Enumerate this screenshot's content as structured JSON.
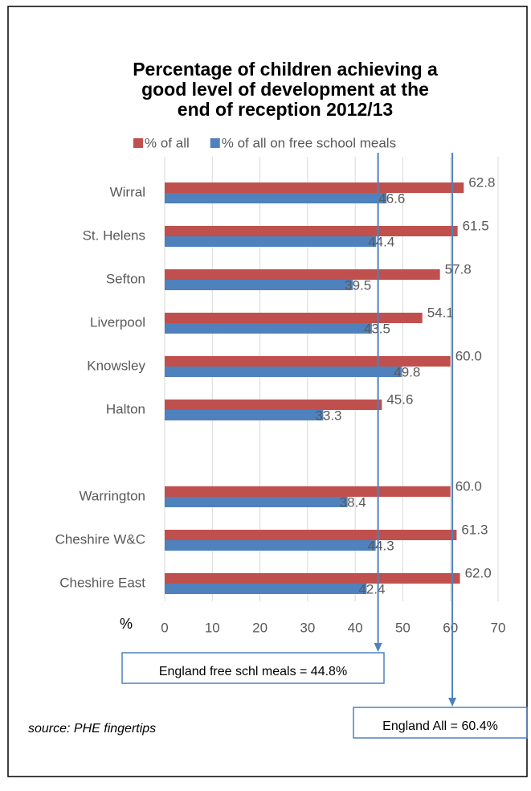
{
  "chart_data": {
    "type": "bar",
    "orientation": "horizontal",
    "title": [
      "Percentage of children achieving a",
      "good level of development at the",
      "end of reception 2012/13"
    ],
    "categories": [
      "Wirral",
      "St. Helens",
      "Sefton",
      "Liverpool",
      "Knowsley",
      "Halton",
      null,
      "Warrington",
      "Cheshire W&C",
      "Cheshire East"
    ],
    "series": [
      {
        "name": "% of all",
        "color": "#c0504d",
        "values": [
          62.8,
          61.5,
          57.8,
          54.1,
          60.0,
          45.6,
          null,
          60.0,
          61.3,
          62.0
        ],
        "value_labels": [
          "62.8",
          "61.5",
          "57.8",
          "54.1",
          "60.0",
          "45.6",
          null,
          "60.0",
          "61.3",
          "62.0"
        ]
      },
      {
        "name": "% of all on free school meals",
        "color": "#4f81bd",
        "values": [
          46.6,
          44.4,
          39.5,
          43.5,
          49.8,
          33.3,
          null,
          38.4,
          44.3,
          42.4
        ],
        "value_labels": [
          "46.6",
          "44.4",
          "39.5",
          "43.5",
          "49.8",
          "33.3",
          null,
          "38.4",
          "44.3",
          "42.4"
        ]
      }
    ],
    "xlabel": "%",
    "xlim": [
      0,
      70
    ],
    "xticks": [
      0,
      10,
      20,
      30,
      40,
      50,
      60,
      70
    ],
    "grid": true,
    "legend": "top",
    "reference_lines": [
      {
        "value": 44.8,
        "label": "England free schl meals = 44.8%",
        "color": "#4f81bd"
      },
      {
        "value": 60.4,
        "label": "England All = 60.4%",
        "color": "#4f81bd"
      }
    ],
    "source": "source: PHE fingertips"
  }
}
